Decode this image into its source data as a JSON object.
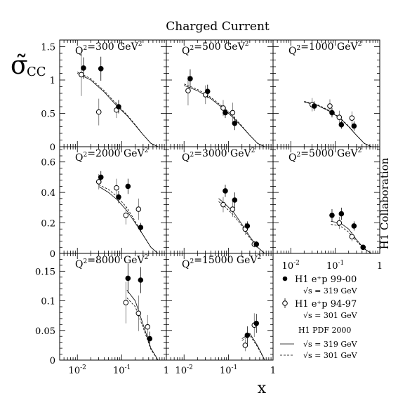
{
  "figure": {
    "title": "Charged Current",
    "ylabel_main": "σ̃",
    "ylabel_sub": "CC",
    "xlabel": "x",
    "side_label": "H1 Collaboration"
  },
  "legend": {
    "data1_label": "H1 e⁺p 99-00",
    "data1_energy": "√s = 319 GeV",
    "data2_label": "H1 e⁺p 94-97",
    "data2_energy": "√s = 301 GeV",
    "fit_title": "H1 PDF 2000",
    "fit1_label": "√s = 319 GeV",
    "fit2_label": "√s = 301 GeV"
  },
  "chart_data": {
    "type": "scatter",
    "title": "Charged Current",
    "xlabel": "x",
    "ylabel": "σ̃CC",
    "x_scale": "log",
    "xlim": [
      0.004,
      1
    ],
    "x_ticks": [
      "10⁻²",
      "10⁻¹",
      "1"
    ],
    "y_ticks_rows": [
      [
        "0",
        "0.5",
        "1",
        "1.5"
      ],
      [
        "0",
        "0.2",
        "0.4",
        "0.6"
      ],
      [
        "0",
        "0.05",
        "0.1",
        "0.15"
      ]
    ],
    "panels": [
      {
        "label": "Q²=300 GeV²",
        "ylim": [
          0,
          1.6
        ],
        "series": [
          {
            "name": "H1 e⁺p 99-00",
            "marker": "filled",
            "x": [
              0.013,
              0.032,
              0.08
            ],
            "y": [
              1.18,
              1.17,
              0.6
            ],
            "err": [
              0.16,
              0.18,
              0.1
            ]
          },
          {
            "name": "H1 e⁺p 94-97",
            "marker": "open",
            "x": [
              0.013,
              0.032,
              0.08
            ],
            "y": [
              1.08,
              0.52,
              0.55
            ],
            "err": [
              0.32,
              0.2,
              0.12
            ]
          }
        ],
        "curves": {
          "x": [
            0.01,
            0.02,
            0.04,
            0.08,
            0.13,
            0.2,
            0.3,
            0.45,
            0.65
          ],
          "y319": [
            1.1,
            1.0,
            0.82,
            0.6,
            0.47,
            0.32,
            0.18,
            0.05,
            0.0
          ],
          "y301": [
            1.12,
            1.02,
            0.84,
            0.62,
            0.48,
            0.33,
            0.18,
            0.05,
            0.0
          ]
        }
      },
      {
        "label": "Q²=500 GeV²",
        "ylim": [
          0,
          1.6
        ],
        "series": [
          {
            "name": "H1 e⁺p 99-00",
            "marker": "filled",
            "x": [
              0.013,
              0.032,
              0.08,
              0.13
            ],
            "y": [
              1.02,
              0.83,
              0.51,
              0.35
            ],
            "err": [
              0.14,
              0.1,
              0.08,
              0.1
            ]
          },
          {
            "name": "H1 e⁺p 94-97",
            "marker": "open",
            "x": [
              0.013,
              0.032,
              0.08,
              0.13
            ],
            "y": [
              0.84,
              0.78,
              0.58,
              0.51
            ],
            "err": [
              0.22,
              0.14,
              0.12,
              0.15
            ]
          }
        ],
        "curves": {
          "x": [
            0.01,
            0.02,
            0.04,
            0.08,
            0.13,
            0.2,
            0.3,
            0.45,
            0.65
          ],
          "y319": [
            0.92,
            0.84,
            0.72,
            0.56,
            0.43,
            0.3,
            0.17,
            0.05,
            0.0
          ],
          "y301": [
            0.94,
            0.86,
            0.74,
            0.58,
            0.45,
            0.31,
            0.17,
            0.05,
            0.0
          ]
        }
      },
      {
        "label": "Q²=1000 GeV²",
        "ylim": [
          0,
          1.6
        ],
        "series": [
          {
            "name": "H1 e⁺p 99-00",
            "marker": "filled",
            "x": [
              0.032,
              0.08,
              0.13,
              0.25
            ],
            "y": [
              0.61,
              0.51,
              0.33,
              0.31
            ],
            "err": [
              0.07,
              0.07,
              0.06,
              0.07
            ]
          },
          {
            "name": "H1 e⁺p 94-97",
            "marker": "open",
            "x": [
              0.032,
              0.08,
              0.13,
              0.25
            ],
            "y": [
              0.63,
              0.61,
              0.44,
              0.43
            ],
            "err": [
              0.1,
              0.1,
              0.1,
              0.1
            ]
          }
        ],
        "curves": {
          "x": [
            0.02,
            0.04,
            0.08,
            0.13,
            0.2,
            0.3,
            0.45,
            0.65
          ],
          "y319": [
            0.67,
            0.62,
            0.52,
            0.42,
            0.3,
            0.17,
            0.05,
            0.0
          ],
          "y301": [
            0.68,
            0.63,
            0.53,
            0.43,
            0.31,
            0.17,
            0.05,
            0.0
          ]
        }
      },
      {
        "label": "Q²=2000 GeV²",
        "ylim": [
          0,
          0.7
        ],
        "series": [
          {
            "name": "H1 e⁺p 99-00",
            "marker": "filled",
            "x": [
              0.032,
              0.08,
              0.13,
              0.25
            ],
            "y": [
              0.5,
              0.37,
              0.44,
              0.17
            ],
            "err": [
              0.04,
              0.04,
              0.05,
              0.03
            ]
          },
          {
            "name": "H1 e⁺p 94-97",
            "marker": "open",
            "x": [
              0.032,
              0.08,
              0.13,
              0.25
            ],
            "y": [
              0.47,
              0.43,
              0.25,
              0.29
            ],
            "err": [
              0.05,
              0.06,
              0.06,
              0.07
            ]
          }
        ],
        "curves": {
          "x": [
            0.03,
            0.05,
            0.08,
            0.13,
            0.2,
            0.3,
            0.45,
            0.65
          ],
          "y319": [
            0.44,
            0.4,
            0.35,
            0.28,
            0.2,
            0.12,
            0.04,
            0.0
          ],
          "y301": [
            0.45,
            0.42,
            0.37,
            0.3,
            0.21,
            0.12,
            0.04,
            0.0
          ]
        }
      },
      {
        "label": "Q²=3000 GeV²",
        "ylim": [
          0,
          0.7
        ],
        "series": [
          {
            "name": "H1 e⁺p 99-00",
            "marker": "filled",
            "x": [
              0.08,
              0.13,
              0.25,
              0.4
            ],
            "y": [
              0.41,
              0.35,
              0.18,
              0.06
            ],
            "err": [
              0.04,
              0.05,
              0.03,
              0.02
            ]
          },
          {
            "name": "H1 e⁺p 94-97",
            "marker": "open",
            "x": [
              0.08,
              0.13,
              0.25,
              0.4
            ],
            "y": [
              0.32,
              0.29,
              0.16,
              0.06
            ],
            "err": [
              0.05,
              0.05,
              0.04,
              0.02
            ]
          }
        ],
        "curves": {
          "x": [
            0.06,
            0.08,
            0.13,
            0.2,
            0.3,
            0.45,
            0.65
          ],
          "y319": [
            0.36,
            0.33,
            0.27,
            0.19,
            0.11,
            0.04,
            0.0
          ],
          "y301": [
            0.34,
            0.31,
            0.25,
            0.18,
            0.1,
            0.04,
            0.0
          ]
        }
      },
      {
        "label": "Q²=5000 GeV²",
        "ylim": [
          0,
          0.7
        ],
        "series": [
          {
            "name": "H1 e⁺p 99-00",
            "marker": "filled",
            "x": [
              0.08,
              0.13,
              0.25,
              0.4
            ],
            "y": [
              0.25,
              0.26,
              0.18,
              0.04
            ],
            "err": [
              0.04,
              0.04,
              0.03,
              0.01
            ]
          },
          {
            "name": "H1 e⁺p 94-97",
            "marker": "open",
            "x": [
              0.13,
              0.25
            ],
            "y": [
              0.2,
              0.11
            ],
            "err": [
              0.04,
              0.03
            ]
          }
        ],
        "curves": {
          "x": [
            0.08,
            0.13,
            0.2,
            0.3,
            0.45,
            0.65
          ],
          "y319": [
            0.21,
            0.2,
            0.16,
            0.09,
            0.03,
            0.0
          ],
          "y301": [
            0.19,
            0.18,
            0.14,
            0.08,
            0.03,
            0.0
          ]
        }
      },
      {
        "label": "Q²=8000 GeV²",
        "ylim": [
          0,
          0.18
        ],
        "series": [
          {
            "name": "H1 e⁺p 99-00",
            "marker": "filled",
            "x": [
              0.13,
              0.25,
              0.4
            ],
            "y": [
              0.138,
              0.135,
              0.036
            ],
            "err": [
              0.025,
              0.022,
              0.012
            ]
          },
          {
            "name": "H1 e⁺p 94-97",
            "marker": "open",
            "x": [
              0.13,
              0.25,
              0.4
            ],
            "y": [
              0.097,
              0.079,
              0.056
            ],
            "err": [
              0.035,
              0.03,
              0.02
            ]
          }
        ],
        "curves": {
          "x": [
            0.13,
            0.2,
            0.3,
            0.45,
            0.65
          ],
          "y319": [
            0.118,
            0.1,
            0.06,
            0.02,
            0.0
          ],
          "y301": [
            0.105,
            0.09,
            0.055,
            0.018,
            0.0
          ]
        }
      },
      {
        "label": "Q²=15000 GeV²",
        "ylim": [
          0,
          0.18
        ],
        "series": [
          {
            "name": "H1 e⁺p 99-00",
            "marker": "filled",
            "x": [
              0.25,
              0.4
            ],
            "y": [
              0.042,
              0.062
            ],
            "err": [
              0.015,
              0.016
            ]
          },
          {
            "name": "H1 e⁺p 94-97",
            "marker": "open",
            "x": [
              0.25,
              0.4
            ],
            "y": [
              0.025,
              0.059
            ],
            "err": [
              0.01,
              0.02
            ]
          }
        ],
        "curves": {
          "x": [
            0.2,
            0.3,
            0.45,
            0.65
          ],
          "y319": [
            0.036,
            0.045,
            0.024,
            0.0
          ],
          "y301": [
            0.033,
            0.042,
            0.022,
            0.0
          ]
        }
      }
    ]
  }
}
